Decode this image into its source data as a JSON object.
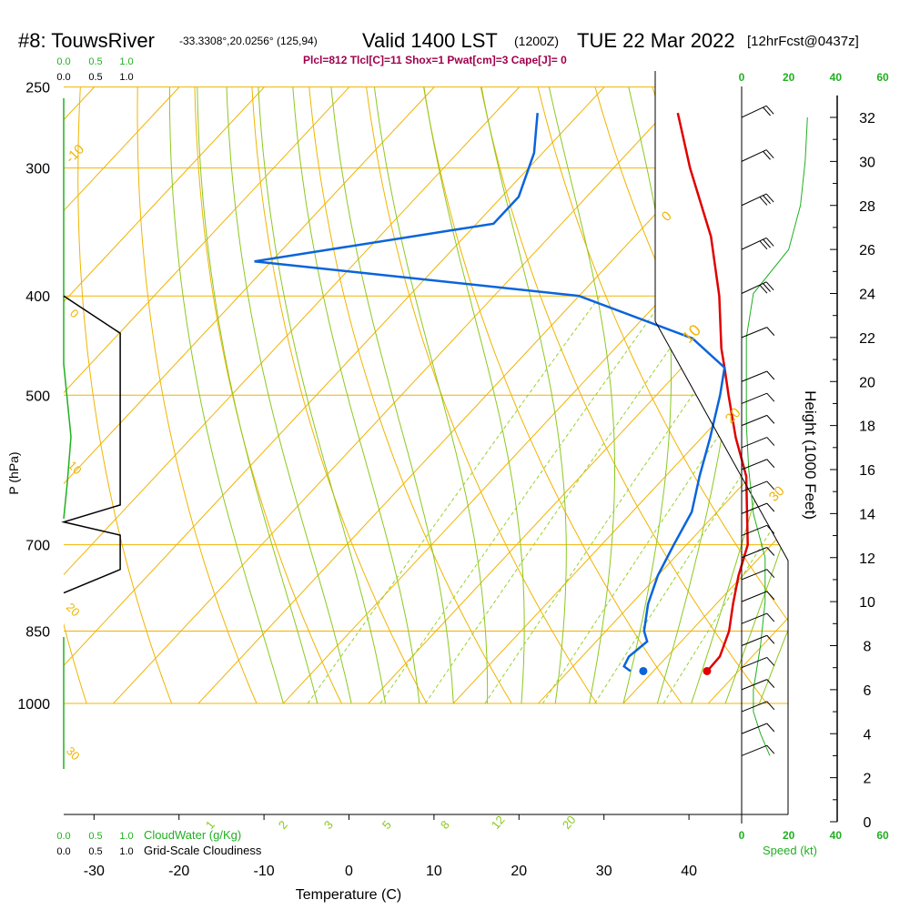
{
  "header": {
    "station": "#8: TouwsRiver",
    "coords": "-33.3308°,20.0256° (125,94)",
    "valid": "Valid 1400 LST",
    "utc": "(1200Z)",
    "date": "TUE 22 Mar 2022",
    "forecast": "[12hrFcst@0437z]",
    "indices": "Plcl=812 Tlcl[C]=11 Shox=1 Pwat[cm]=3 Cape[J]= 0"
  },
  "colors": {
    "temperature": "#e00000",
    "dewpoint": "#0a64dc",
    "isobar": "#f0b400",
    "dry_adiabat": "#f0b400",
    "moist_adiabat": "#8cc81e",
    "mixing_ratio": "#96d228",
    "cloud_water": "#20b020",
    "indices_text": "#a0004c"
  },
  "chart_data": {
    "type": "skew-t",
    "title": "#8: TouwsRiver  Valid 1400 LST (1200Z) TUE 22 Mar 2022",
    "xlabel": "Temperature (C)",
    "ylabel": "P (hPa)",
    "y2label": "Height (1000 Feet)",
    "x_ticks": [
      -30,
      -20,
      -10,
      0,
      10,
      20,
      30,
      40
    ],
    "pressure_ticks": [
      250,
      300,
      400,
      500,
      700,
      850,
      1000
    ],
    "height_ticks": [
      0,
      2,
      4,
      6,
      8,
      10,
      12,
      14,
      16,
      18,
      20,
      22,
      24,
      26,
      28,
      30,
      32
    ],
    "dry_adiabat_labels": [
      "-10",
      "0",
      "10",
      "20",
      "30"
    ],
    "moist_adiabat_labels": [
      "0",
      "10",
      "20",
      "30"
    ],
    "mixing_ratio_labels": [
      "1",
      "2",
      "3",
      "5",
      "8",
      "12",
      "20"
    ],
    "speed_axis_ticks": [
      "0",
      "20",
      "40",
      "60"
    ],
    "speed_label": "Speed (kt)",
    "cloud_ticks_top": [
      "0.0",
      "0.5",
      "1.0"
    ],
    "cloud_ticks_bottom": [
      "0.0",
      "0.5",
      "1.0"
    ],
    "cloud_water_label": "CloudWater (g/Kg)",
    "cloudiness_label": "Grid-Scale Cloudiness",
    "temperature_profile": [
      {
        "p": 925,
        "t": 26.3
      },
      {
        "p": 900,
        "t": 26.2
      },
      {
        "p": 850,
        "t": 24.5
      },
      {
        "p": 800,
        "t": 22.0
      },
      {
        "p": 750,
        "t": 19.5
      },
      {
        "p": 700,
        "t": 17.2
      },
      {
        "p": 650,
        "t": 13.5
      },
      {
        "p": 600,
        "t": 9.5
      },
      {
        "p": 550,
        "t": 4.0
      },
      {
        "p": 500,
        "t": -1.5
      },
      {
        "p": 470,
        "t": -5.0
      },
      {
        "p": 450,
        "t": -7.5
      },
      {
        "p": 400,
        "t": -13.5
      },
      {
        "p": 350,
        "t": -21.0
      },
      {
        "p": 300,
        "t": -31.0
      },
      {
        "p": 265,
        "t": -38.5
      }
    ],
    "dewpoint_profile": [
      {
        "p": 930,
        "t": 17.3
      },
      {
        "p": 920,
        "t": 16.0
      },
      {
        "p": 900,
        "t": 15.5
      },
      {
        "p": 870,
        "t": 16.0
      },
      {
        "p": 850,
        "t": 14.5
      },
      {
        "p": 800,
        "t": 12.0
      },
      {
        "p": 750,
        "t": 10.0
      },
      {
        "p": 700,
        "t": 8.5
      },
      {
        "p": 650,
        "t": 7.0
      },
      {
        "p": 600,
        "t": 4.0
      },
      {
        "p": 550,
        "t": 1.0
      },
      {
        "p": 500,
        "t": -2.5
      },
      {
        "p": 470,
        "t": -5.0
      },
      {
        "p": 440,
        "t": -12.0
      },
      {
        "p": 400,
        "t": -30.0
      },
      {
        "p": 370,
        "t": -72.0
      },
      {
        "p": 340,
        "t": -48.0
      },
      {
        "p": 320,
        "t": -48.0
      },
      {
        "p": 290,
        "t": -51.0
      },
      {
        "p": 265,
        "t": -55.0
      }
    ],
    "surface_temperature": 26.3,
    "surface_dewpoint": 18.8,
    "wind_speed_profile_kt": [
      {
        "h": 3,
        "s": 12
      },
      {
        "h": 4,
        "s": 8
      },
      {
        "h": 5,
        "s": 5
      },
      {
        "h": 6,
        "s": 5
      },
      {
        "h": 8,
        "s": 8
      },
      {
        "h": 10,
        "s": 10
      },
      {
        "h": 12,
        "s": 10
      },
      {
        "h": 14,
        "s": 5
      },
      {
        "h": 16,
        "s": 3
      },
      {
        "h": 18,
        "s": 2
      },
      {
        "h": 20,
        "s": 2
      },
      {
        "h": 22,
        "s": 2
      },
      {
        "h": 24,
        "s": 5
      },
      {
        "h": 26,
        "s": 20
      },
      {
        "h": 28,
        "s": 25
      },
      {
        "h": 30,
        "s": 27
      },
      {
        "h": 32,
        "s": 28
      }
    ],
    "wind_barb_heights": [
      3,
      4,
      5,
      6,
      7,
      8,
      9,
      10,
      11,
      12,
      13,
      14,
      15,
      16,
      17,
      18,
      19,
      20,
      22,
      24,
      26,
      28,
      30,
      32
    ],
    "cloudiness_profile": [
      {
        "p": 400,
        "v": 0.0
      },
      {
        "p": 435,
        "v": 0.9
      },
      {
        "p": 640,
        "v": 0.9
      },
      {
        "p": 665,
        "v": 0.0
      },
      {
        "p": 685,
        "v": 0.9
      },
      {
        "p": 740,
        "v": 0.9
      },
      {
        "p": 780,
        "v": 0.0
      }
    ]
  }
}
